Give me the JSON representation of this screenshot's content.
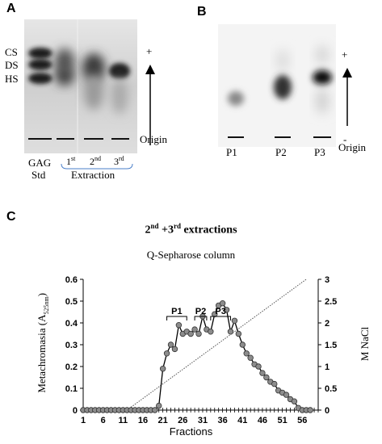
{
  "figure": {
    "panel_a": {
      "letter": "A",
      "band_labels": [
        "CS",
        "DS",
        "HS"
      ],
      "plus_sign": "+",
      "origin_label": "Origin",
      "lane_std_line1": "GAG",
      "lane_std_line2": "Std",
      "lane_extractions": [
        {
          "num": "1",
          "sup": "st"
        },
        {
          "num": "2",
          "sup": "nd"
        },
        {
          "num": "3",
          "sup": "rd"
        }
      ],
      "extraction_label": "Extraction"
    },
    "panel_b": {
      "letter": "B",
      "lanes": [
        "P1",
        "P2",
        "P3"
      ],
      "plus_sign": "+",
      "minus_sign": "-",
      "origin_label": "Origin"
    },
    "panel_c": {
      "letter": "C"
    }
  },
  "chart_data": {
    "type": "line",
    "title_parts": {
      "a": "2",
      "a_sup": "nd",
      "b": " +3",
      "b_sup": "rd",
      "c": " extractions"
    },
    "subtitle": "Q-Sepharose column",
    "xlabel": "Fractions",
    "ylabel_left_main": "Metachromasia (A",
    "ylabel_left_sub": "525nm",
    "ylabel_left_end": ")",
    "ylabel_right": "M NaCl",
    "xlim": [
      1,
      60
    ],
    "ylim_left": [
      0,
      0.6
    ],
    "ylim_right": [
      0,
      3
    ],
    "x_ticks": [
      1,
      6,
      11,
      16,
      21,
      26,
      31,
      36,
      41,
      46,
      51,
      56
    ],
    "y_ticks_left": [
      "0",
      "0.1",
      "0.2",
      "0.3",
      "0.4",
      "0.5",
      "0.6"
    ],
    "y_ticks_right": [
      "0",
      "0.5",
      "1",
      "1.5",
      "2",
      "2.5",
      "3"
    ],
    "peak_labels": [
      {
        "label": "P1",
        "from": 22,
        "to": 27
      },
      {
        "label": "P2",
        "from": 29,
        "to": 32
      },
      {
        "label": "P3",
        "from": 33,
        "to": 38
      }
    ],
    "series": [
      {
        "x": [
          1,
          2,
          3,
          4,
          5,
          6,
          7,
          8,
          9,
          10,
          11,
          12,
          13,
          14,
          15,
          16,
          17,
          18,
          19,
          20,
          21,
          22,
          23,
          24,
          25,
          26,
          27,
          28,
          29,
          30,
          31,
          32,
          33,
          34,
          35,
          36,
          37,
          38,
          39,
          40,
          41,
          42,
          43,
          44,
          45,
          46,
          47,
          48,
          49,
          50,
          51,
          52,
          53,
          54,
          55,
          56,
          57,
          58
        ],
        "values": [
          0,
          0,
          0,
          0,
          0,
          0,
          0,
          0,
          0,
          0,
          0,
          0,
          0,
          0,
          0,
          0,
          0,
          0,
          0,
          0.02,
          0.19,
          0.26,
          0.3,
          0.28,
          0.39,
          0.35,
          0.36,
          0.35,
          0.37,
          0.35,
          0.43,
          0.37,
          0.36,
          0.44,
          0.48,
          0.49,
          0.46,
          0.36,
          0.41,
          0.35,
          0.3,
          0.26,
          0.24,
          0.21,
          0.2,
          0.17,
          0.15,
          0.13,
          0.12,
          0.09,
          0.08,
          0.07,
          0.05,
          0.04,
          0.01,
          0,
          0,
          0
        ]
      },
      {
        "x": [
          12,
          57
        ],
        "values": [
          0,
          3
        ],
        "axis": "right",
        "style": "dotted"
      }
    ]
  }
}
